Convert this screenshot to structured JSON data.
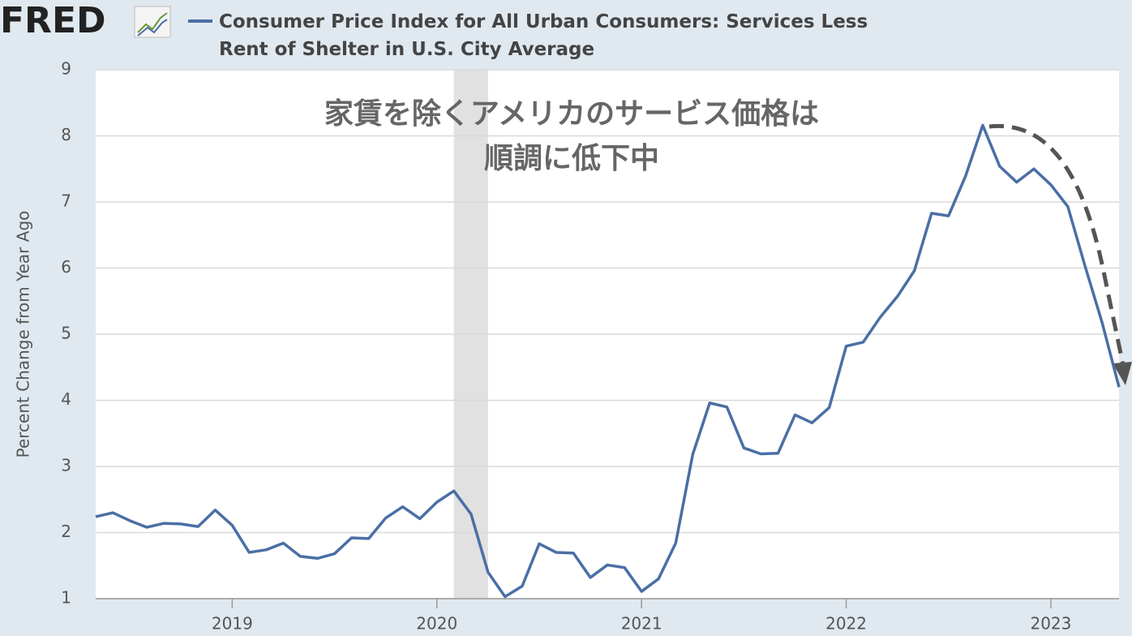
{
  "chart_data": {
    "type": "line",
    "logo": "FRED",
    "title": "Consumer Price Index for All Urban Consumers: Services Less Rent of Shelter in U.S. City Average",
    "y_label": "Percent Change from Year Ago",
    "annotation": [
      "家賃を除くアメリカのサービス価格は",
      "順調に低下中"
    ],
    "x": [
      2018.333,
      2018.417,
      2018.5,
      2018.583,
      2018.667,
      2018.75,
      2018.833,
      2018.917,
      2019,
      2019.083,
      2019.167,
      2019.25,
      2019.333,
      2019.417,
      2019.5,
      2019.583,
      2019.667,
      2019.75,
      2019.833,
      2019.917,
      2020,
      2020.083,
      2020.167,
      2020.25,
      2020.333,
      2020.417,
      2020.5,
      2020.583,
      2020.667,
      2020.75,
      2020.833,
      2020.917,
      2021,
      2021.083,
      2021.167,
      2021.25,
      2021.333,
      2021.417,
      2021.5,
      2021.583,
      2021.667,
      2021.75,
      2021.833,
      2021.917,
      2022,
      2022.083,
      2022.167,
      2022.25,
      2022.333,
      2022.417,
      2022.5,
      2022.583,
      2022.667,
      2022.75,
      2022.833,
      2022.917,
      2023,
      2023.083,
      2023.167,
      2023.25,
      2023.333
    ],
    "series": [
      {
        "name": "Consumer Price Index for All Urban Consumers: Services Less Rent of Shelter in U.S. City Average",
        "color": "#4a6fa5",
        "values": [
          2.24,
          2.3,
          2.18,
          2.08,
          2.14,
          2.13,
          2.09,
          2.34,
          2.11,
          1.7,
          1.74,
          1.84,
          1.64,
          1.61,
          1.68,
          1.92,
          1.91,
          2.22,
          2.39,
          2.21,
          2.46,
          2.63,
          2.28,
          1.4,
          1.03,
          1.19,
          1.83,
          1.7,
          1.69,
          1.32,
          1.51,
          1.47,
          1.11,
          1.3,
          1.84,
          3.18,
          3.96,
          3.9,
          3.28,
          3.19,
          3.2,
          3.78,
          3.66,
          3.89,
          4.82,
          4.88,
          5.26,
          5.57,
          5.96,
          6.83,
          6.79,
          7.39,
          8.16,
          7.54,
          7.3,
          7.5,
          7.26,
          6.93,
          6.03,
          5.18,
          4.2
        ]
      }
    ],
    "recessions": [
      [
        2020.083,
        2020.25
      ]
    ],
    "xlim": [
      2018.333,
      2023.333
    ],
    "xticks": [
      2019,
      2020,
      2021,
      2022,
      2023
    ],
    "ylim": [
      1,
      9
    ],
    "yticks": [
      1,
      2,
      3,
      4,
      5,
      6,
      7,
      8,
      9
    ],
    "grid": true
  }
}
